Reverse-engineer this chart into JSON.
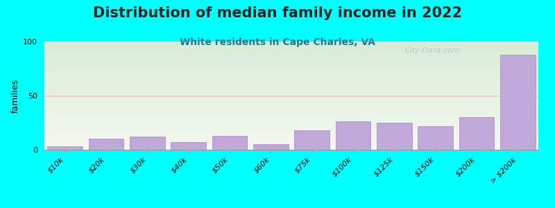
{
  "title": "Distribution of median family income in 2022",
  "subtitle": "White residents in Cape Charles, VA",
  "ylabel": "families",
  "background_color": "#00FFFF",
  "plot_bg_gradient_top": "#d8edd8",
  "plot_bg_gradient_bottom": "#f5f8f0",
  "bar_color": "#c0a8d8",
  "bar_edge_color": "#b090c8",
  "categories": [
    "$10k",
    "$20k",
    "$30k",
    "$40k",
    "$50k",
    "$60k",
    "$75k",
    "$100k",
    "$125k",
    "$150k",
    "$200k",
    "> $200k"
  ],
  "values": [
    3,
    10,
    12,
    7,
    13,
    5,
    18,
    26,
    25,
    22,
    30,
    88
  ],
  "ylim": [
    0,
    100
  ],
  "yticks": [
    0,
    50,
    100
  ],
  "grid_color": "#e8b0b0",
  "title_fontsize": 15,
  "subtitle_fontsize": 10,
  "ylabel_fontsize": 9,
  "tick_fontsize": 8,
  "watermark": "City-Data.com"
}
